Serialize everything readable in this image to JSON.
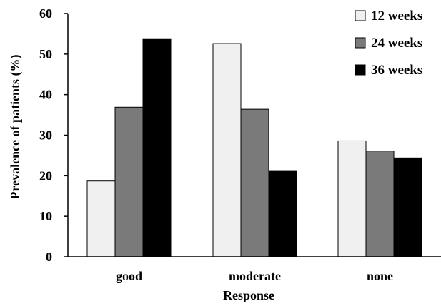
{
  "chart_data": {
    "type": "bar",
    "categories": [
      "good",
      "moderate",
      "none"
    ],
    "series": [
      {
        "name": "12 weeks",
        "values": [
          18.7,
          52.6,
          28.6
        ],
        "color": "#f0f0f0"
      },
      {
        "name": "24 weeks",
        "values": [
          36.9,
          36.4,
          26.1
        ],
        "color": "#7a7a7a"
      },
      {
        "name": "36 weeks",
        "values": [
          53.8,
          21.1,
          24.4
        ],
        "color": "#000000"
      }
    ],
    "xlabel": "Response",
    "ylabel": "Prevalence of patients (%)",
    "ylim": [
      0,
      60
    ],
    "yticks": [
      "0",
      "10",
      "20",
      "30",
      "40",
      "50",
      "60"
    ],
    "grid": false,
    "legend_position": "top-right"
  }
}
